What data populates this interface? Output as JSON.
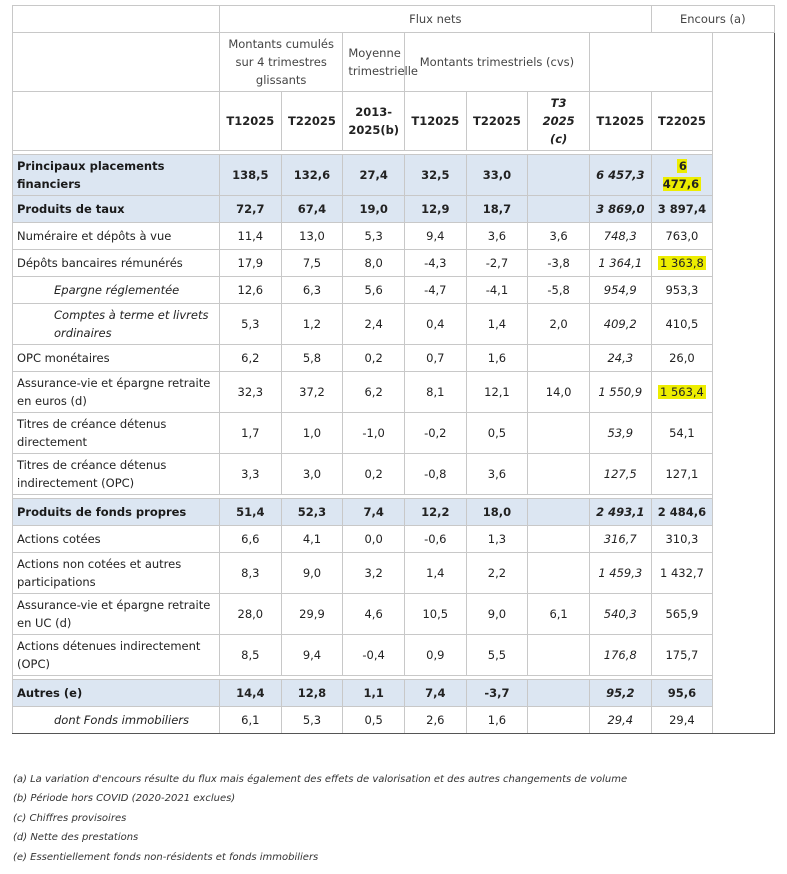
{
  "table": {
    "header": {
      "group1": [
        "Flux nets",
        "Encours (a)"
      ],
      "group2": [
        "Montants cumulés sur 4 trimestres glissants",
        "Moyenne trimestrielle",
        "Montants trimestriels (cvs)"
      ],
      "columns": [
        "T12025",
        "T22025",
        "2013-2025(b)",
        "T12025",
        "T22025",
        "T3 2025 (c)",
        "T12025",
        "T22025"
      ]
    },
    "rows": [
      {
        "label": "Principaux placements financiers",
        "cells": [
          "138,5",
          "132,6",
          "27,4",
          "32,5",
          "33,0",
          null,
          "6 457,3",
          "6 477,6"
        ]
      },
      {
        "label": "Produits de taux",
        "cells": [
          "72,7",
          "67,4",
          "19,0",
          "12,9",
          "18,7",
          null,
          "3 869,0",
          "3 897,4"
        ]
      },
      {
        "label": "Numéraire et dépôts à vue",
        "cells": [
          "11,4",
          "13,0",
          "5,3",
          "9,4",
          "3,6",
          "3,6",
          "748,3",
          "763,0"
        ]
      },
      {
        "label": "Dépôts bancaires rémunérés",
        "cells": [
          "17,9",
          "7,5",
          "8,0",
          "-4,3",
          "-2,7",
          "-3,8",
          "1 364,1",
          "1 363,8"
        ]
      },
      {
        "label": "Epargne réglementée",
        "cells": [
          "12,6",
          "6,3",
          "5,6",
          "-4,7",
          "-4,1",
          "-5,8",
          "954,9",
          "953,3"
        ]
      },
      {
        "label": "Comptes à terme et livrets ordinaires",
        "cells": [
          "5,3",
          "1,2",
          "2,4",
          "0,4",
          "1,4",
          "2,0",
          "409,2",
          "410,5"
        ]
      },
      {
        "label": "OPC monétaires",
        "cells": [
          "6,2",
          "5,8",
          "0,2",
          "0,7",
          "1,6",
          null,
          "24,3",
          "26,0"
        ]
      },
      {
        "label": "Assurance-vie et épargne retraite en euros (d)",
        "cells": [
          "32,3",
          "37,2",
          "6,2",
          "8,1",
          "12,1",
          "14,0",
          "1 550,9",
          "1 563,4"
        ]
      },
      {
        "label": "Titres de créance détenus directement",
        "cells": [
          "1,7",
          "1,0",
          "-1,0",
          "-0,2",
          "0,5",
          null,
          "53,9",
          "54,1"
        ]
      },
      {
        "label": "Titres de créance détenus indirectement (OPC)",
        "cells": [
          "3,3",
          "3,0",
          "0,2",
          "-0,8",
          "3,6",
          null,
          "127,5",
          "127,1"
        ]
      },
      {
        "label": "Produits de fonds propres",
        "cells": [
          "51,4",
          "52,3",
          "7,4",
          "12,2",
          "18,0",
          null,
          "2 493,1",
          "2 484,6"
        ]
      },
      {
        "label": "Actions cotées",
        "cells": [
          "6,6",
          "4,1",
          "0,0",
          "-0,6",
          "1,3",
          null,
          "316,7",
          "310,3"
        ]
      },
      {
        "label": "Actions non cotées et autres participations",
        "cells": [
          "8,3",
          "9,0",
          "3,2",
          "1,4",
          "2,2",
          null,
          "1 459,3",
          "1 432,7"
        ]
      },
      {
        "label": "Assurance-vie et épargne retraite en UC (d)",
        "cells": [
          "28,0",
          "29,9",
          "4,6",
          "10,5",
          "9,0",
          "6,1",
          "540,3",
          "565,9"
        ]
      },
      {
        "label": "Actions détenues indirectement (OPC)",
        "cells": [
          "8,5",
          "9,4",
          "-0,4",
          "0,9",
          "5,5",
          null,
          "176,8",
          "175,7"
        ]
      },
      {
        "label": "Autres (e)",
        "cells": [
          "14,4",
          "12,8",
          "1,1",
          "7,4",
          "-3,7",
          null,
          "95,2",
          "95,6"
        ]
      },
      {
        "label": "dont Fonds immobiliers",
        "cells": [
          "6,1",
          "5,3",
          "0,5",
          "2,6",
          "1,6",
          null,
          "29,4",
          "29,4"
        ]
      }
    ]
  },
  "notes": [
    "(a) La variation d'encours résulte du flux mais également des effets de valorisation et des autres changements de volume",
    "(b) Période hors COVID (2020-2021 exclues)",
    "(c) Chiffres provisoires",
    "(d) Nette des prestations",
    "(e) Essentiellement fonds non-résidents et fonds immobiliers"
  ]
}
